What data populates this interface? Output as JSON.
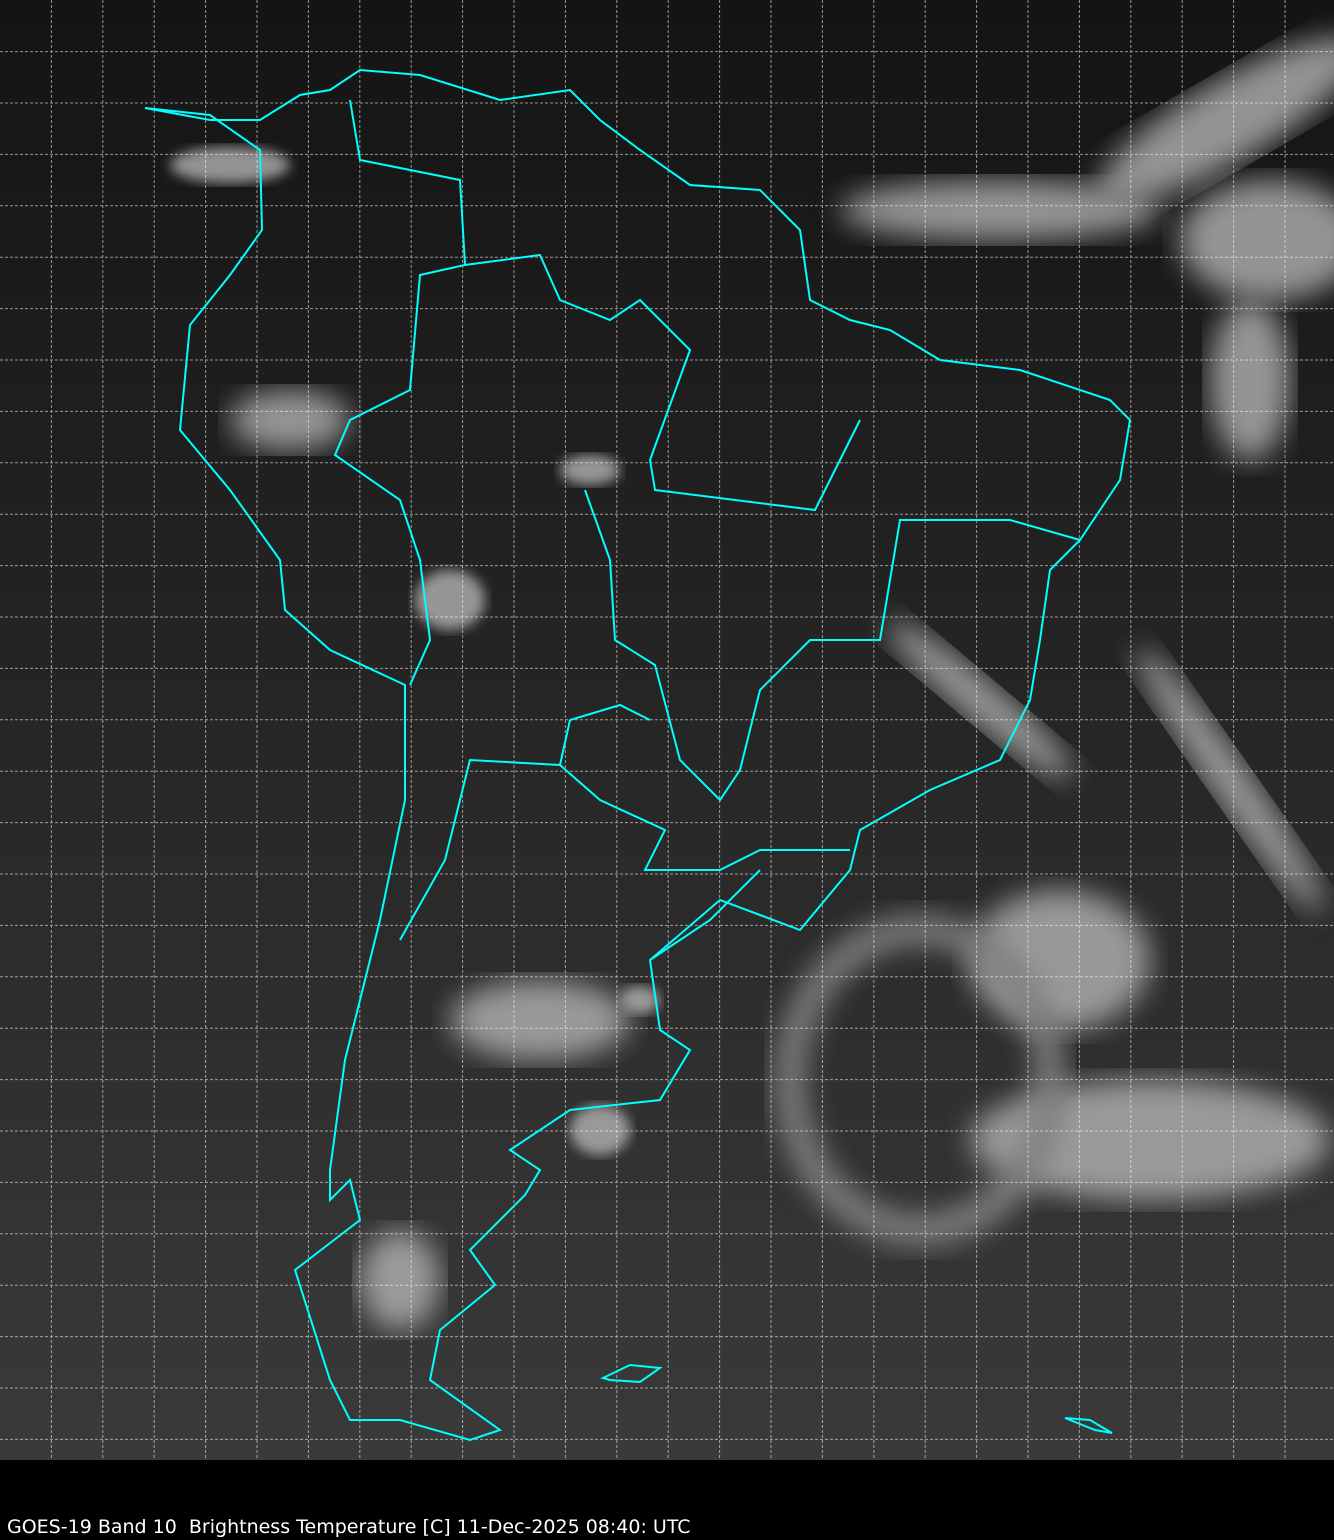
{
  "caption": "GOES-19 Band 10  Brightness Temperature [C] 11-Dec-2025 08:40: UTC",
  "colors": {
    "background": "#000000",
    "boundaries": "#00ffff",
    "gridlines": "#ffffff",
    "caption_text": "#ffffff"
  },
  "map": {
    "product": "infrared brightness temperature, grayscale",
    "region": "South America",
    "grid": true,
    "grid_style": "dashed"
  }
}
